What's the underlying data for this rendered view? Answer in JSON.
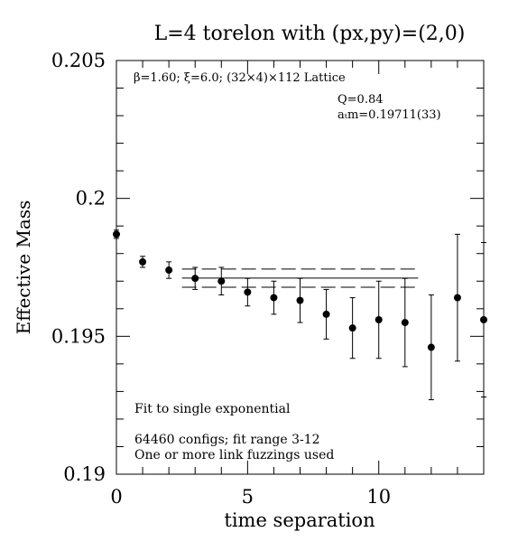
{
  "chart_data": {
    "type": "scatter",
    "title": "L=4 torelon with (px,py)=(2,0)",
    "xlabel": "time separation",
    "ylabel": "Effective Mass",
    "xlim": [
      0,
      14
    ],
    "ylim": [
      0.19,
      0.205
    ],
    "xticks": [
      0,
      5,
      10
    ],
    "yticks": [
      0.19,
      0.195,
      0.2,
      0.205
    ],
    "xtick_labels": [
      "0",
      "5",
      "10"
    ],
    "ytick_labels": [
      "0.19",
      "0.195",
      "0.2",
      "0.205"
    ],
    "grid": false,
    "annotations": {
      "lattice": "β=1.60; ξ=6.0; (32×4)×112 Lattice",
      "quality": "Q=0.84",
      "mass": "aₜm=0.19711(33)",
      "fit_type": "Fit to single exponential",
      "configs": "64460 configs; fit range 3-12",
      "fuzzing": "One or more link fuzzings used"
    },
    "series": [
      {
        "x": [
          0,
          1,
          2,
          3,
          4,
          5,
          6,
          7,
          8,
          9,
          10,
          11,
          12,
          13,
          14
        ],
        "y": [
          0.1987,
          0.1977,
          0.1974,
          0.1971,
          0.197,
          0.1966,
          0.1964,
          0.1963,
          0.1958,
          0.1953,
          0.1956,
          0.1955,
          0.1946,
          0.1964,
          0.1956
        ],
        "yerr": [
          0.00015,
          0.0002,
          0.0003,
          0.0004,
          0.0005,
          0.0005,
          0.0006,
          0.0008,
          0.0009,
          0.0011,
          0.0014,
          0.0016,
          0.0019,
          0.0023,
          0.0028
        ]
      }
    ],
    "fit": {
      "central": 0.19711,
      "error": 0.00033,
      "x_range": [
        2.5,
        11.5
      ]
    }
  }
}
